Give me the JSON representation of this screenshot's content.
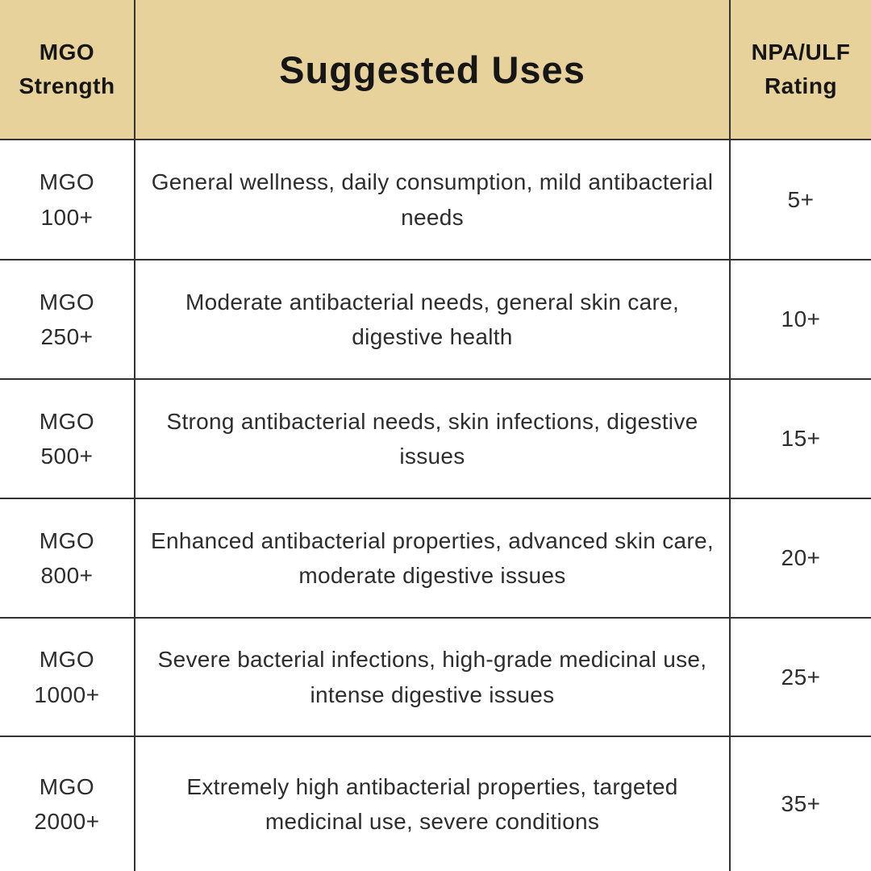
{
  "colors": {
    "header_bg": "#e7d29c",
    "header_text": "#161616",
    "body_text": "#2d2d2d",
    "grid_line": "#333333",
    "background": "#ffffff"
  },
  "header": {
    "strength_label": "MGO\nStrength",
    "uses_label": "Suggested Uses",
    "rating_label": "NPA/ULF\nRating"
  },
  "rows": [
    {
      "strength": "MGO\n100+",
      "uses": "General wellness, daily consumption, mild antibacterial needs",
      "rating": "5+"
    },
    {
      "strength": "MGO\n250+",
      "uses": "Moderate antibacterial needs, general skin care, digestive health",
      "rating": "10+"
    },
    {
      "strength": "MGO\n500+",
      "uses": "Strong antibacterial needs, skin infections, digestive issues",
      "rating": "15+"
    },
    {
      "strength": "MGO\n800+",
      "uses": "Enhanced antibacterial properties, advanced skin care, moderate digestive issues",
      "rating": "20+"
    },
    {
      "strength": "MGO\n1000+",
      "uses": "Severe bacterial infections, high-grade medicinal use, intense digestive issues",
      "rating": "25+"
    },
    {
      "strength": "MGO\n2000+",
      "uses": "Extremely high antibacterial properties, targeted medicinal use, severe conditions",
      "rating": "35+"
    }
  ],
  "chart_data": {
    "type": "table",
    "title": "Suggested Uses",
    "columns": [
      "MGO Strength",
      "Suggested Uses",
      "NPA/ULF Rating"
    ],
    "rows": [
      [
        "MGO 100+",
        "General wellness, daily consumption, mild antibacterial needs",
        "5+"
      ],
      [
        "MGO 250+",
        "Moderate antibacterial needs, general skin care, digestive health",
        "10+"
      ],
      [
        "MGO 500+",
        "Strong antibacterial needs, skin infections, digestive issues",
        "15+"
      ],
      [
        "MGO 800+",
        "Enhanced antibacterial properties, advanced skin care, moderate digestive issues",
        "20+"
      ],
      [
        "MGO 1000+",
        "Severe bacterial infections, high-grade medicinal use, intense digestive issues",
        "25+"
      ],
      [
        "MGO 2000+",
        "Extremely high antibacterial properties, targeted medicinal use, severe conditions",
        "35+"
      ]
    ]
  }
}
